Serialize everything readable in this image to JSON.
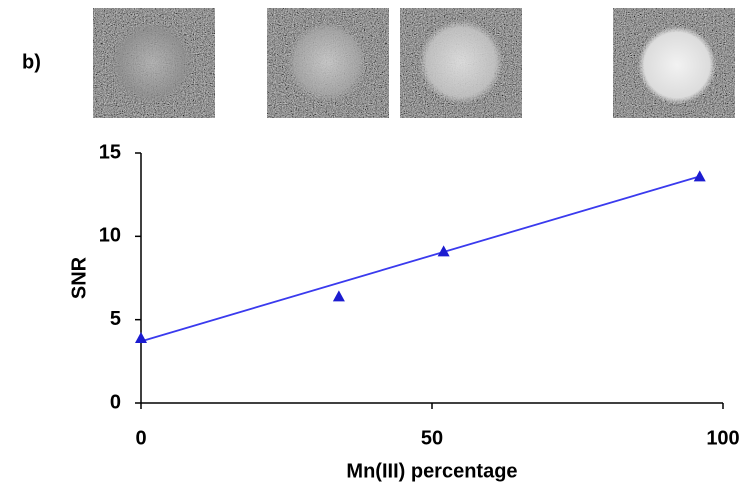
{
  "chart_data": {
    "type": "scatter",
    "panel_label": "b)",
    "x_label": "Mn(III) percentage",
    "y_label": "SNR",
    "series": [
      {
        "color": "#1c1cd0",
        "x": [
          0,
          34,
          52,
          96
        ],
        "values": [
          3.9,
          6.4,
          9.1,
          13.6
        ]
      }
    ],
    "trendline": {
      "color": "#3a3aee",
      "x": [
        0,
        96
      ],
      "values": [
        3.7,
        13.6
      ]
    },
    "xlim": [
      0,
      100
    ],
    "ylim": [
      0,
      15
    ],
    "xticks": [
      0,
      50,
      100
    ],
    "yticks": [
      0,
      5,
      10,
      15
    ],
    "grid": false
  }
}
